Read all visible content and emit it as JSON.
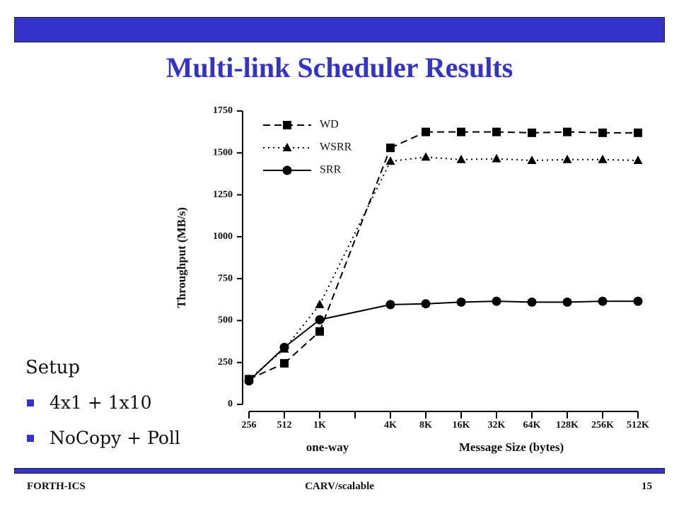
{
  "slide": {
    "title": "Multi-link Scheduler Results",
    "setup": "Setup",
    "bullets": [
      "4x1 + 1x10",
      "NoCopy + Poll"
    ],
    "footer": {
      "left": "FORTH-ICS",
      "center": "CARV/scalable",
      "page": "15"
    }
  },
  "chart_data": {
    "type": "line",
    "y_label": "Throughput (MB/s)",
    "x_label": "Message Size (bytes)",
    "annotation": "one-way",
    "categories": [
      "256",
      "512",
      "1K",
      null,
      "4K",
      "8K",
      "16K",
      "32K",
      "64K",
      "128K",
      "256K",
      "512K"
    ],
    "series": [
      {
        "name": "WD",
        "color": "#000000",
        "dash": "dashed",
        "marker": "square",
        "values": [
          150,
          245,
          435,
          null,
          1530,
          1625,
          1625,
          1625,
          1620,
          1625,
          1620,
          1620
        ]
      },
      {
        "name": "WSRR",
        "color": "#000000",
        "dash": "dotted",
        "marker": "triangle",
        "values": [
          150,
          330,
          595,
          null,
          1450,
          1475,
          1460,
          1465,
          1455,
          1460,
          1460,
          1455
        ]
      },
      {
        "name": "SRR",
        "color": "#000000",
        "dash": "solid",
        "marker": "circle",
        "values": [
          140,
          340,
          505,
          null,
          595,
          600,
          610,
          615,
          610,
          610,
          615,
          615
        ]
      }
    ],
    "ylim": [
      0,
      1750
    ],
    "yticks": [
      0,
      250,
      500,
      750,
      1000,
      1250,
      1500,
      1750
    ],
    "grid": false,
    "legend": "top-left"
  }
}
